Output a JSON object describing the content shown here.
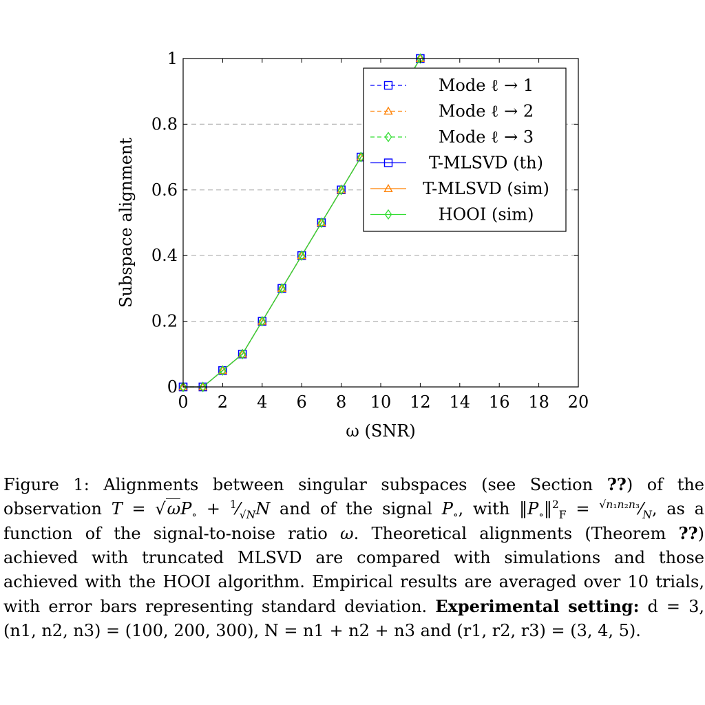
{
  "chart_data": {
    "type": "line",
    "xlabel": "ω (SNR)",
    "ylabel": "Subspace alignment",
    "xlim": [
      0,
      20
    ],
    "ylim": [
      0,
      1
    ],
    "xticks": [
      "0",
      "2",
      "4",
      "6",
      "8",
      "10",
      "12",
      "14",
      "16",
      "18",
      "20"
    ],
    "yticks": [
      "0",
      "0.2",
      "0.4",
      "0.6",
      "0.8",
      "1"
    ],
    "grid": "horizontal dashed",
    "legend_position": "top-right",
    "x": [
      0,
      1,
      2,
      3,
      4,
      5,
      6,
      7,
      8,
      9,
      10,
      11,
      12
    ],
    "series": [
      {
        "name": "Mode ℓ → 1",
        "style": "dashed",
        "marker": "square",
        "color": "#0000ff",
        "values": [
          0,
          0,
          0.05,
          0.1,
          0.2,
          0.3,
          0.4,
          0.5,
          0.6,
          0.7,
          0.8,
          0.9,
          1.0
        ]
      },
      {
        "name": "Mode ℓ → 2",
        "style": "dashed",
        "marker": "triangle",
        "color": "#ff8000",
        "values": [
          0,
          0,
          0.05,
          0.1,
          0.2,
          0.3,
          0.4,
          0.5,
          0.6,
          0.7,
          0.8,
          0.9,
          1.0
        ]
      },
      {
        "name": "Mode ℓ → 3",
        "style": "dashed",
        "marker": "diamond",
        "color": "#33dd33",
        "values": [
          0,
          0,
          0.05,
          0.1,
          0.2,
          0.3,
          0.4,
          0.5,
          0.6,
          0.7,
          0.8,
          0.9,
          1.0
        ]
      },
      {
        "name": "T-MLSVD (th)",
        "style": "solid",
        "marker": "square",
        "color": "#0000ff",
        "values": [
          0,
          0,
          0.05,
          0.1,
          0.2,
          0.3,
          0.4,
          0.5,
          0.6,
          0.7,
          0.8,
          0.9,
          1.0
        ]
      },
      {
        "name": "T-MLSVD (sim)",
        "style": "solid",
        "marker": "triangle",
        "color": "#ff8000",
        "values": [
          0,
          0,
          0.05,
          0.1,
          0.2,
          0.3,
          0.4,
          0.5,
          0.6,
          0.7,
          0.8,
          0.9,
          1.0
        ]
      },
      {
        "name": "HOOI (sim)",
        "style": "solid",
        "marker": "diamond",
        "color": "#33dd33",
        "values": [
          0,
          0,
          0.05,
          0.1,
          0.2,
          0.3,
          0.4,
          0.5,
          0.6,
          0.7,
          0.8,
          0.9,
          1.0
        ]
      }
    ]
  },
  "caption": {
    "label": "Figure 1:",
    "s1": "Alignments between singular subspaces (see Section",
    "ref1": "??",
    "s2": ") of the observation",
    "s3": "and of the signal",
    "s4": ", with",
    "s5": ", as a function of the signal-to-noise ratio",
    "s6": ". Theoretical alignments (Theorem",
    "ref2": "??",
    "s7": ") achieved with truncated MLSVD are compared with simulations and those achieved with the HOOI algorithm. Empirical results are averaged over 10 trials, with error bars representing standard deviation.",
    "setting_label": "Experimental setting:",
    "setting": "d = 3, (n1, n2, n3) = (100, 200, 300), N = n1 + n2 + n3 and (r1, r2, r3) = (3, 4, 5)."
  }
}
